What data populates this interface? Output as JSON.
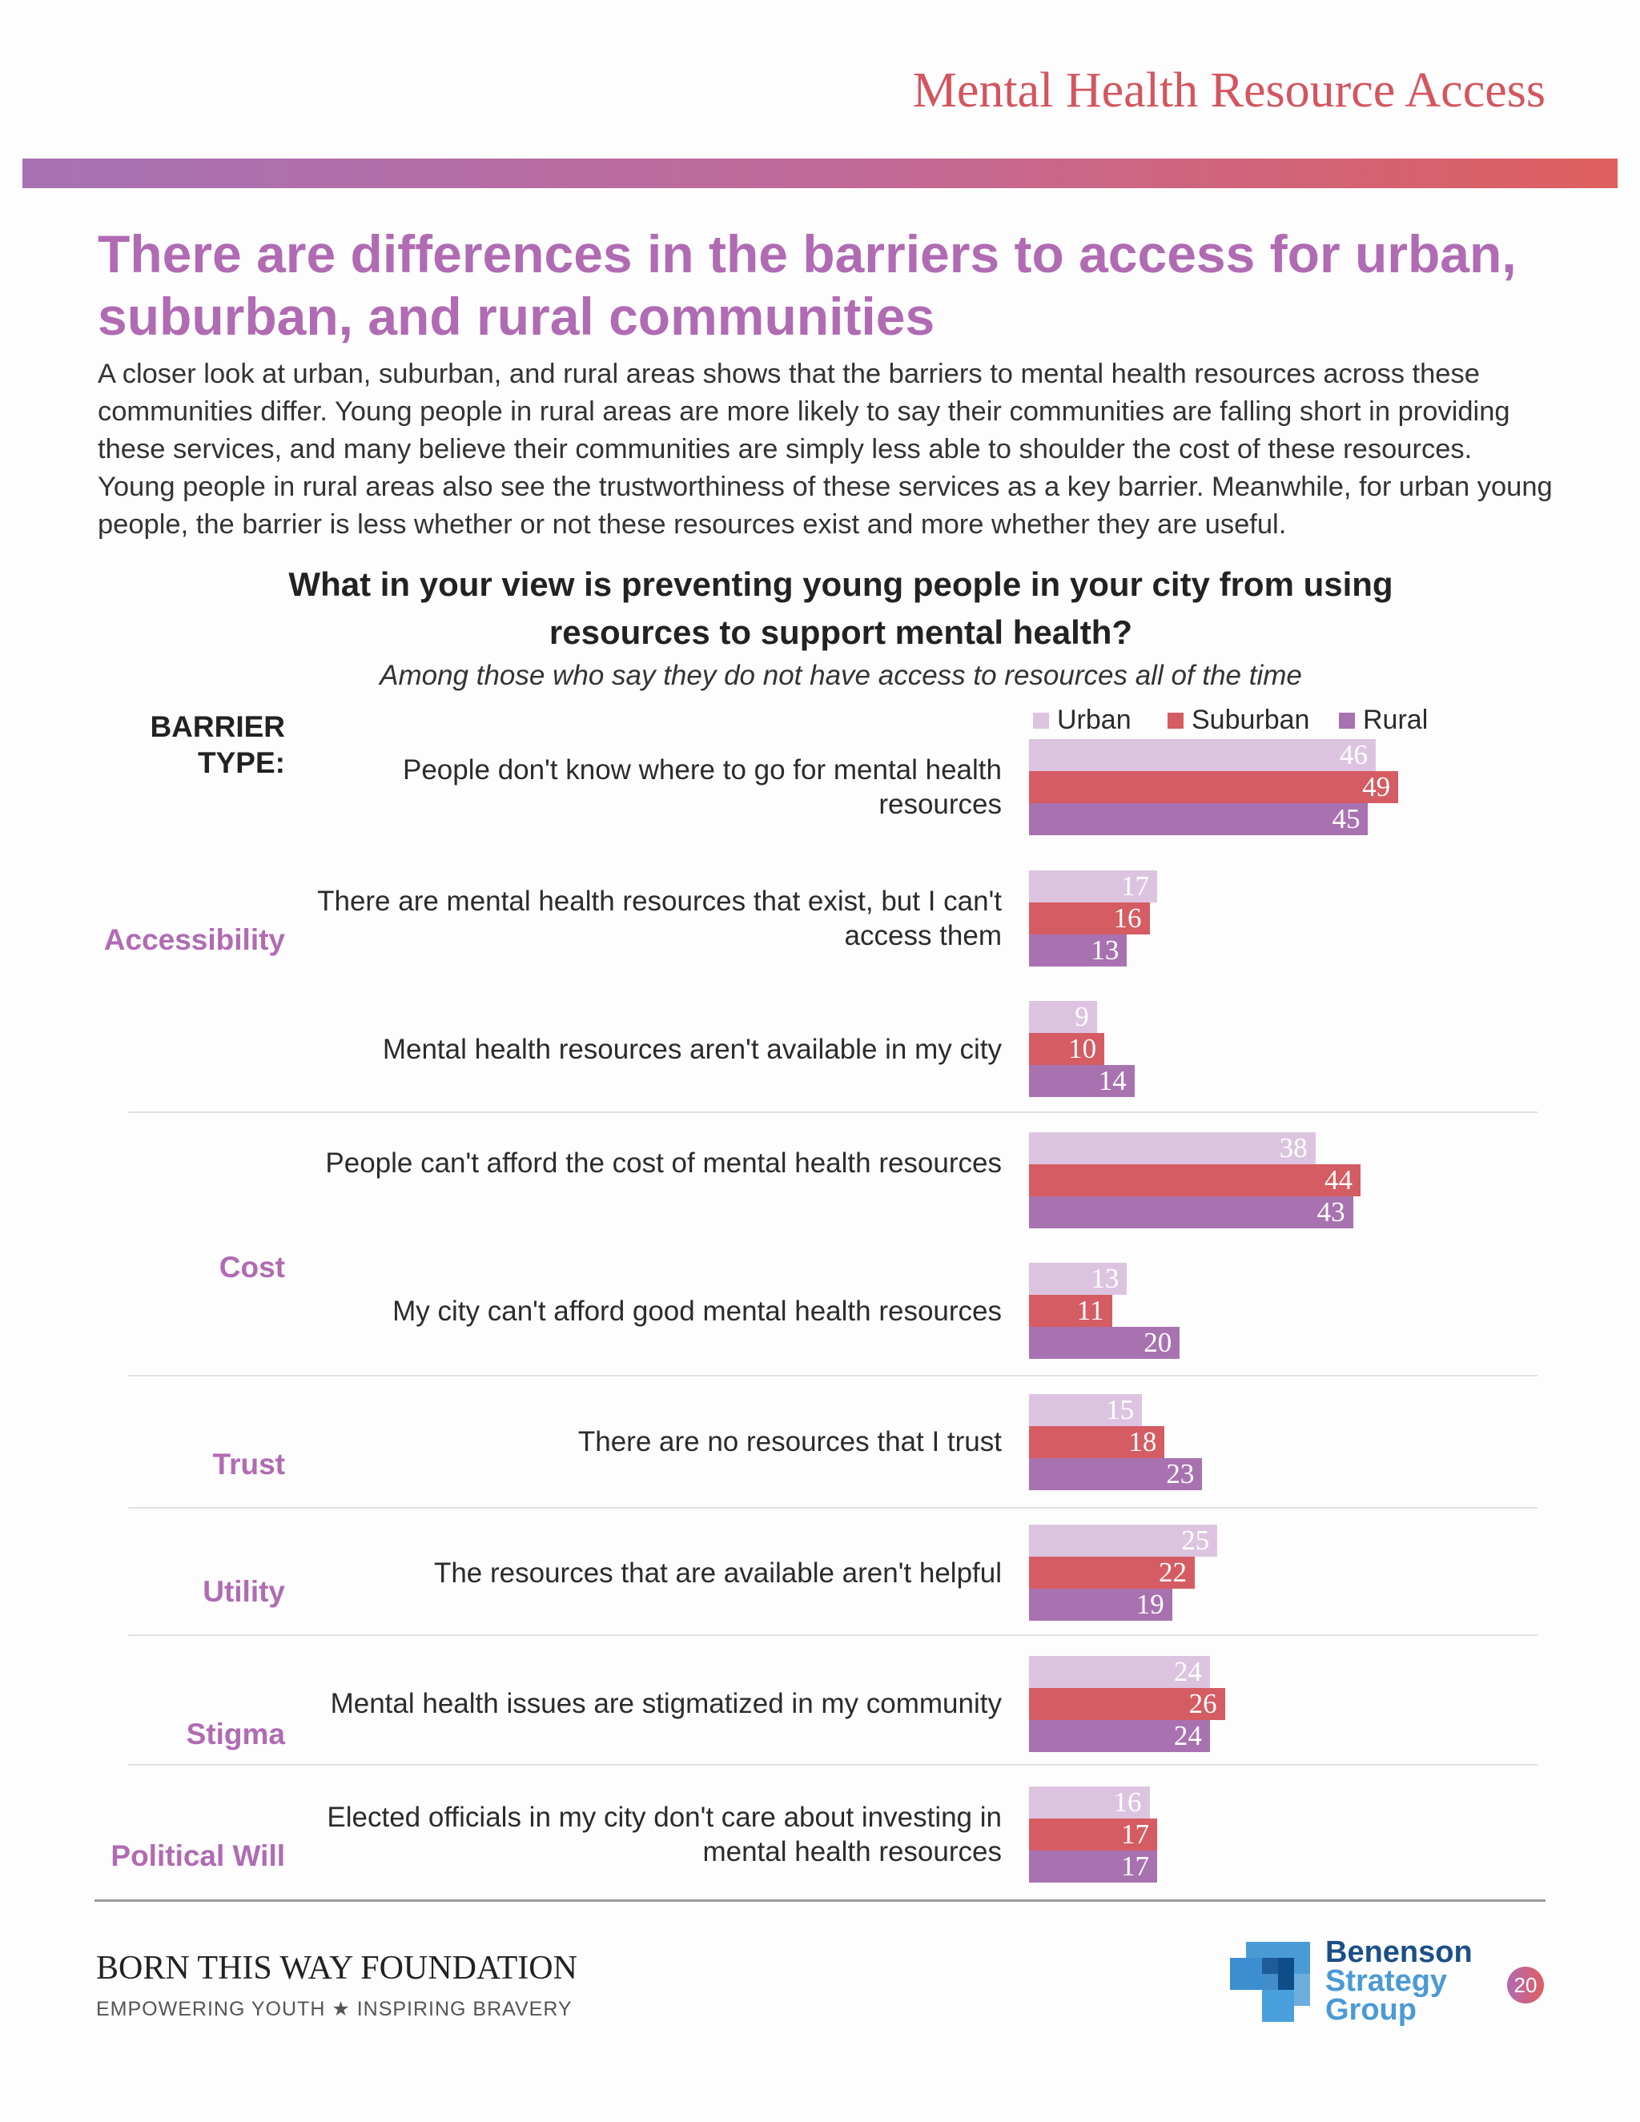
{
  "header": {
    "title": "Mental Health Resource Access"
  },
  "headline": "There are differences in the barriers to access for urban, suburban, and rural communities",
  "intro": "A closer look at urban, suburban, and rural areas shows that the barriers to mental health resources across these communities differ. Young people in rural areas are more likely to say their communities are falling short in providing these services, and many believe their communities are simply less able to shoulder the cost of these resources. Young people in rural areas also see the trustworthiness of these services as a key barrier. Meanwhile, for urban young people, the barrier is less whether or not these resources exist and more whether they are useful.",
  "chart_data": {
    "type": "bar",
    "orientation": "horizontal",
    "title": "What in your view is preventing young people in your city from using resources to support mental health?",
    "subtitle": "Among those who say they do not have access to resources all of the time",
    "group_header": "BARRIER TYPE:",
    "legend_position": "top-right",
    "grid": false,
    "groups": [
      {
        "label": "Accessibility",
        "items": [
          0,
          1,
          2
        ]
      },
      {
        "label": "Cost",
        "items": [
          3,
          4
        ]
      },
      {
        "label": "Trust",
        "items": [
          5
        ]
      },
      {
        "label": "Utility",
        "items": [
          6
        ]
      },
      {
        "label": "Stigma",
        "items": [
          7
        ]
      },
      {
        "label": "Political Will",
        "items": [
          8
        ]
      }
    ],
    "categories": [
      "People don't know where to go for mental health resources",
      "There are mental health resources that exist, but I can't access them",
      "Mental health resources aren't available in my city",
      "People can't afford the cost of mental health resources",
      "My city can't afford good mental health resources",
      "There are no resources that I trust",
      "The resources that are available aren't helpful",
      "Mental health issues are stigmatized in my community",
      "Elected officials in my city don't care about investing in mental health resources"
    ],
    "series": [
      {
        "name": "Urban",
        "color": "#dcc4e0",
        "values": [
          46,
          17,
          9,
          38,
          13,
          15,
          25,
          24,
          16
        ]
      },
      {
        "name": "Suburban",
        "color": "#d55c62",
        "values": [
          49,
          16,
          10,
          44,
          11,
          18,
          22,
          26,
          17
        ]
      },
      {
        "name": "Rural",
        "color": "#a872b0",
        "values": [
          45,
          13,
          14,
          43,
          20,
          23,
          19,
          24,
          17
        ]
      }
    ]
  },
  "footer": {
    "org": "BORN THIS WAY FOUNDATION",
    "tagline": "EMPOWERING YOUTH ★ INSPIRING BRAVERY",
    "partner_logo": "Benenson Strategy Group",
    "page_number": "20"
  }
}
